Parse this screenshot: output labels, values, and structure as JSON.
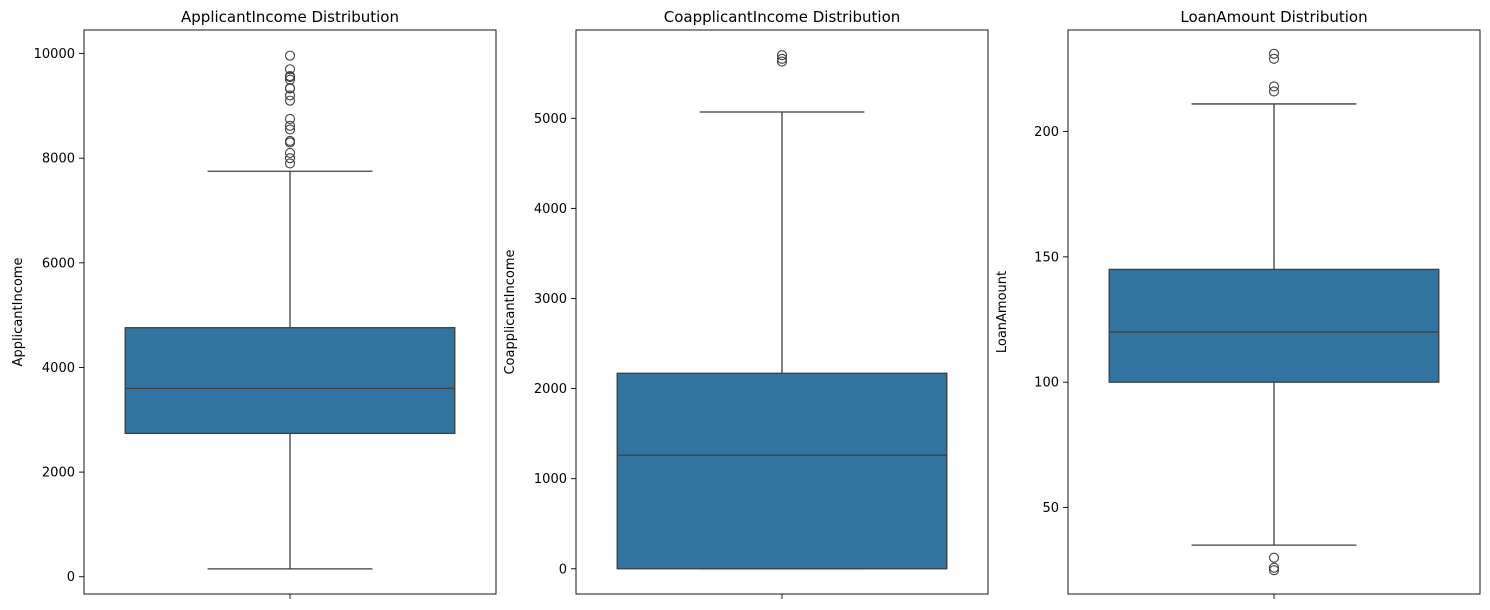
{
  "chart_data": [
    {
      "type": "box",
      "title": "ApplicantIncome Distribution",
      "xlabel": "",
      "ylabel": "ApplicantIncome",
      "ylim": [
        -330,
        10450
      ],
      "yticks": [
        0,
        2000,
        4000,
        6000,
        8000,
        10000
      ],
      "grid": false,
      "box_color": "#3274a1",
      "stats": {
        "whislo": 150,
        "q1": 2740,
        "med": 3600,
        "q3": 4760,
        "whishi": 7750
      },
      "outliers": [
        7900,
        8000,
        8100,
        8300,
        8330,
        8550,
        8620,
        8750,
        9100,
        9200,
        9330,
        9340,
        9500,
        9550,
        9570,
        9700,
        9960
      ]
    },
    {
      "type": "box",
      "title": "CoapplicantIncome Distribution",
      "xlabel": "",
      "ylabel": "CoapplicantIncome",
      "ylim": [
        -280,
        5980
      ],
      "yticks": [
        0,
        1000,
        2000,
        3000,
        4000,
        5000
      ],
      "grid": false,
      "box_color": "#3274a1",
      "stats": {
        "whislo": 0,
        "q1": 0,
        "med": 1260,
        "q3": 2170,
        "whishi": 5070
      },
      "outliers": [
        5630,
        5660,
        5700
      ]
    },
    {
      "type": "box",
      "title": "LoanAmount Distribution",
      "xlabel": "",
      "ylabel": "LoanAmount",
      "ylim": [
        15.5,
        240.5
      ],
      "yticks": [
        50,
        100,
        150,
        200
      ],
      "grid": false,
      "box_color": "#3274a1",
      "stats": {
        "whislo": 35,
        "q1": 100,
        "med": 120,
        "q3": 145,
        "whishi": 211
      },
      "outliers": [
        25,
        26,
        30,
        216,
        218,
        229,
        231
      ]
    }
  ]
}
